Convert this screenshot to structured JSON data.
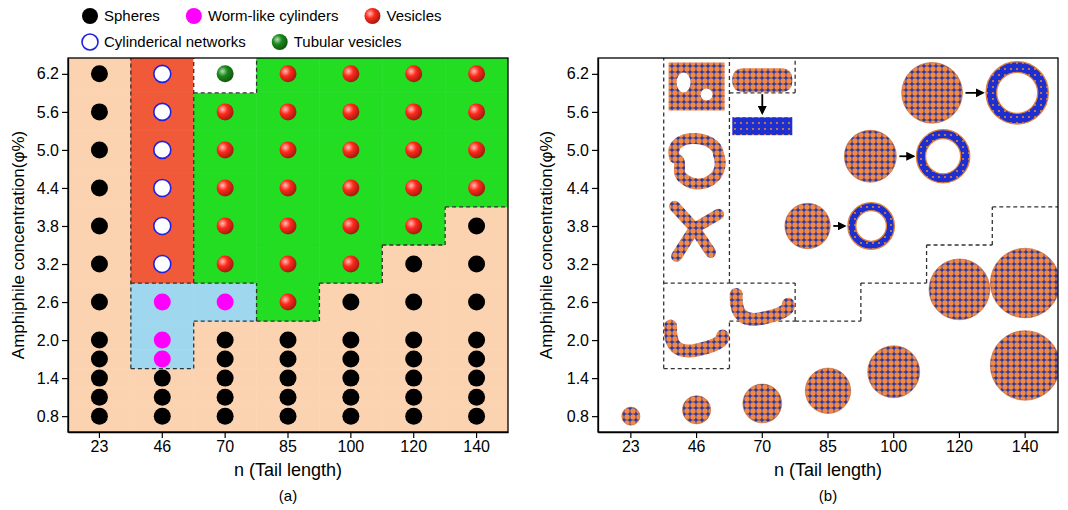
{
  "chart_data": [
    {
      "type": "scatter",
      "title": "(a)",
      "x_label": "n (Tail length)",
      "y_label": "Amphiphile concentration(φ%)",
      "categories": [
        23,
        46,
        70,
        85,
        100,
        120,
        140
      ],
      "ylim": [
        0.55,
        6.45
      ],
      "yticks": [
        0.8,
        1.4,
        {
          "value": 2.0,
          "label": "2.0"
        },
        2.6,
        3.2,
        3.8,
        4.4,
        {
          "value": 5.0,
          "label": "5.0"
        },
        5.6,
        6.2
      ],
      "legend": "top",
      "series": [
        {
          "name": "Spheres",
          "color": "#000000",
          "marker": "circle",
          "x": [
            23,
            23,
            23,
            23,
            23,
            23,
            23,
            23,
            23,
            23,
            23,
            23,
            46,
            46,
            46,
            70,
            70,
            70,
            70,
            70,
            85,
            85,
            85,
            85,
            85,
            100,
            100,
            100,
            100,
            100,
            100,
            120,
            120,
            120,
            120,
            120,
            120,
            120,
            140,
            140,
            140,
            140,
            140,
            140,
            140,
            140
          ],
          "values": [
            0.8,
            1.1,
            1.4,
            1.7,
            2.0,
            2.6,
            3.2,
            3.8,
            4.4,
            5.0,
            5.6,
            6.2,
            0.8,
            1.1,
            1.4,
            0.8,
            1.1,
            1.4,
            1.7,
            2.0,
            0.8,
            1.1,
            1.4,
            1.7,
            2.0,
            0.8,
            1.1,
            1.4,
            1.7,
            2.0,
            2.6,
            0.8,
            1.1,
            1.4,
            1.7,
            2.0,
            2.6,
            3.2,
            0.8,
            1.1,
            1.4,
            1.7,
            2.0,
            2.6,
            3.2,
            3.8
          ]
        },
        {
          "name": "Worm-like cylinders",
          "color": "#ff00ff",
          "marker": "circle",
          "x": [
            46,
            46,
            46,
            70
          ],
          "values": [
            1.7,
            2.0,
            2.6,
            2.6
          ]
        },
        {
          "name": "Vesicles",
          "color": "#ff2a1a",
          "marker": "sphere",
          "x": [
            70,
            70,
            70,
            70,
            70,
            85,
            85,
            85,
            85,
            85,
            85,
            85,
            100,
            100,
            100,
            100,
            100,
            100,
            120,
            120,
            120,
            120,
            120,
            140,
            140,
            140,
            140
          ],
          "values": [
            3.2,
            3.8,
            4.4,
            5.0,
            5.6,
            2.6,
            3.2,
            3.8,
            4.4,
            5.0,
            5.6,
            6.2,
            3.2,
            3.8,
            4.4,
            5.0,
            5.6,
            6.2,
            3.8,
            4.4,
            5.0,
            5.6,
            6.2,
            4.4,
            5.0,
            5.6,
            6.2
          ]
        },
        {
          "name": "Cylinderical networks",
          "color": "#2020e0",
          "marker": "open_circle",
          "x": [
            46,
            46,
            46,
            46,
            46,
            46
          ],
          "values": [
            3.2,
            3.8,
            4.4,
            5.0,
            5.6,
            6.2
          ]
        },
        {
          "name": "Tubular vesicles",
          "color": "#1a8a1a",
          "marker": "sphere",
          "x": [
            70
          ],
          "values": [
            6.2
          ]
        }
      ]
    },
    {
      "type": "scatter",
      "title": "(b)",
      "x_label": "n (Tail length)",
      "y_label": "Amphiphile concentration(φ%)",
      "categories": [
        23,
        46,
        70,
        85,
        100,
        120,
        140
      ],
      "ylim": [
        0.55,
        6.45
      ],
      "yticks": [
        0.8,
        1.4,
        {
          "value": 2.0,
          "label": "2.0"
        },
        2.6,
        3.2,
        3.8,
        4.4,
        {
          "value": 5.0,
          "label": "5.0"
        },
        5.6,
        6.2
      ],
      "series": [
        {
          "marker": "sphere-micelle",
          "x": [
            23,
            46,
            70,
            85,
            100,
            140,
            120,
            140
          ],
          "values": [
            0.8,
            0.9,
            1.0,
            1.2,
            1.5,
            1.6,
            2.8,
            2.9
          ]
        },
        {
          "marker": "vesicle",
          "x": [
            85,
            100,
            120
          ],
          "values": [
            3.8,
            4.9,
            5.9
          ]
        },
        {
          "marker": "network",
          "x": [
            46,
            46,
            46
          ],
          "values": [
            6.0,
            4.8,
            3.7
          ]
        },
        {
          "marker": "worm",
          "x": [
            46,
            70
          ],
          "values": [
            2.0,
            2.5
          ]
        },
        {
          "marker": "tubular",
          "x": [
            70
          ],
          "values": [
            6.1
          ]
        }
      ]
    }
  ]
}
